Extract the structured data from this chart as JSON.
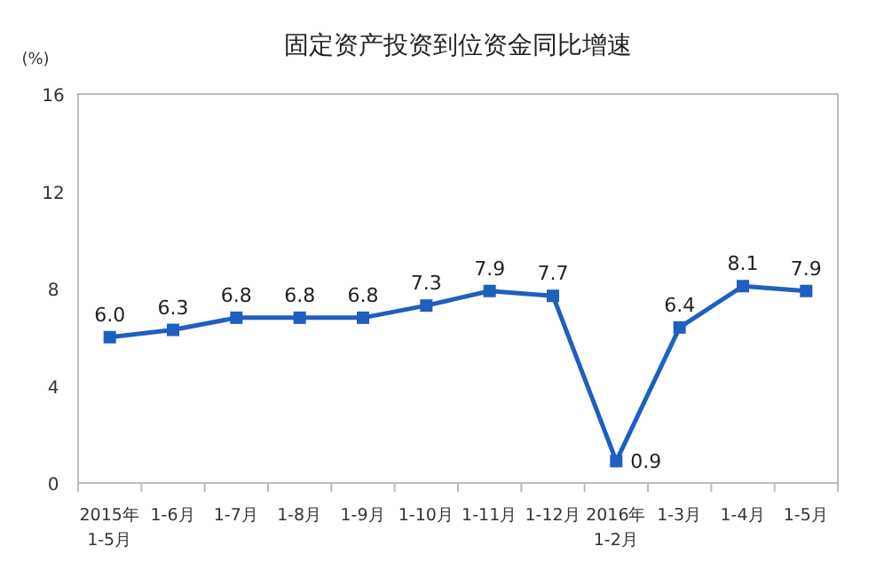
{
  "chart_data": {
    "type": "line",
    "title": "固定资产投资到位资金同比增速",
    "ylabel": "(%)",
    "categories": [
      "2015年\n1-5月",
      "1-6月",
      "1-7月",
      "1-8月",
      "1-9月",
      "1-10月",
      "1-11月",
      "1-12月",
      "2016年\n1-2月",
      "1-3月",
      "1-4月",
      "1-5月"
    ],
    "series": [
      {
        "color": "#1f5fc0",
        "values": [
          6.0,
          6.3,
          6.8,
          6.8,
          6.8,
          7.3,
          7.9,
          7.7,
          0.9,
          6.4,
          8.1,
          7.9
        ]
      }
    ],
    "value_labels": [
      "6.0",
      "6.3",
      "6.8",
      "6.8",
      "6.8",
      "7.3",
      "7.9",
      "7.7",
      "0.9",
      "6.4",
      "8.1",
      "7.9"
    ],
    "ylim": [
      0,
      16
    ],
    "yticks": [
      0,
      4,
      8,
      12,
      16
    ],
    "marker": "square",
    "line_style": "solid"
  }
}
